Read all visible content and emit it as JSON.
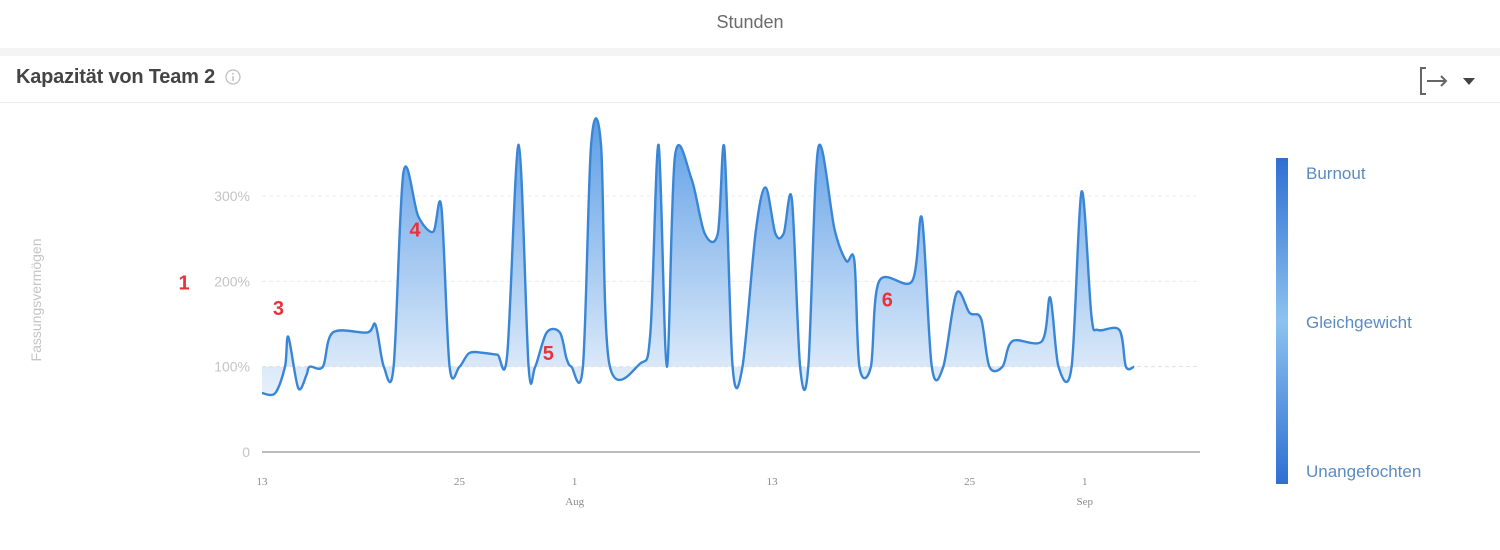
{
  "top_tab": {
    "label": "Stunden"
  },
  "panel": {
    "title": "Kapazität von Team 2"
  },
  "icons": {
    "info": "info-circle-icon",
    "export": "export-icon",
    "dropdown": "caret-down-icon"
  },
  "colors": {
    "line": "#3a86d6",
    "fill_top": "#5d9ee6",
    "fill_bottom": "#e8f1fb",
    "legend_dark": "#2f6fd2",
    "legend_light": "#8cc3ef",
    "annotation": "#e8323c"
  },
  "chart_data": {
    "type": "area",
    "ylabel": "Fassungsvermögen",
    "ylim": [
      0,
      300
    ],
    "y_ticks": [
      {
        "value": 0,
        "label": "0"
      },
      {
        "value": 100,
        "label": "100%"
      },
      {
        "value": 200,
        "label": "200%"
      },
      {
        "value": 300,
        "label": "300%"
      }
    ],
    "baseline": 100,
    "x_range": [
      "2018-07-13",
      "2018-09-08"
    ],
    "x_ticks": [
      {
        "date": "2018-07-13",
        "label": "13",
        "month": ""
      },
      {
        "date": "2018-07-25",
        "label": "25",
        "month": ""
      },
      {
        "date": "2018-08-01",
        "label": "1",
        "month": "Aug"
      },
      {
        "date": "2018-08-13",
        "label": "13",
        "month": ""
      },
      {
        "date": "2018-08-25",
        "label": "25",
        "month": ""
      },
      {
        "date": "2018-09-01",
        "label": "1",
        "month": "Sep"
      }
    ],
    "series": [
      {
        "values": [
          [
            "2018-07-13",
            69
          ],
          [
            "2018-07-13.8",
            69
          ],
          [
            "2018-07-14.4",
            100
          ],
          [
            "2018-07-14.6",
            135
          ],
          [
            "2018-07-15.2",
            75
          ],
          [
            "2018-07-15.7",
            90
          ],
          [
            "2018-07-15.9",
            100
          ],
          [
            "2018-07-16.7",
            100
          ],
          [
            "2018-07-17.3",
            140
          ],
          [
            "2018-07-19.4",
            140
          ],
          [
            "2018-07-19.9",
            149
          ],
          [
            "2018-07-20.4",
            100
          ],
          [
            "2018-07-21.0",
            100
          ],
          [
            "2018-07-21.6",
            328
          ],
          [
            "2018-07-22.5",
            276
          ],
          [
            "2018-07-23.4",
            258
          ],
          [
            "2018-07-23.9",
            287
          ],
          [
            "2018-07-24.4",
            100
          ],
          [
            "2018-07-25.0",
            100
          ],
          [
            "2018-07-25.6",
            116
          ],
          [
            "2018-07-26.5",
            116
          ],
          [
            "2018-07-27.3",
            114
          ],
          [
            "2018-07-27.9",
            114
          ],
          [
            "2018-07-28.6",
            360
          ],
          [
            "2018-07-29.2",
            100
          ],
          [
            "2018-07-29.6",
            100
          ],
          [
            "2018-07-30.3",
            140
          ],
          [
            "2018-07-31.1",
            140
          ],
          [
            "2018-07-31.5",
            110
          ],
          [
            "2018-07-31.8",
            100
          ],
          [
            "2018-08-01.5",
            100
          ],
          [
            "2018-08-02.0",
            360
          ],
          [
            "2018-08-02.6",
            360
          ],
          [
            "2018-08-03.1",
            104
          ],
          [
            "2018-08-05.0",
            104
          ],
          [
            "2018-08-05.6",
            140
          ],
          [
            "2018-08-06.1",
            360
          ],
          [
            "2018-08-06.6",
            100
          ],
          [
            "2018-08-07.1",
            347
          ],
          [
            "2018-08-08.1",
            320
          ],
          [
            "2018-08-08.9",
            256
          ],
          [
            "2018-08-09.7",
            256
          ],
          [
            "2018-08-10.1",
            356
          ],
          [
            "2018-08-10.6",
            100
          ],
          [
            "2018-08-11.2",
            100
          ],
          [
            "2018-08-12.0",
            258
          ],
          [
            "2018-08-12.6",
            310
          ],
          [
            "2018-08-13.2",
            256
          ],
          [
            "2018-08-13.7",
            256
          ],
          [
            "2018-08-14.2",
            296
          ],
          [
            "2018-08-14.7",
            100
          ],
          [
            "2018-08-15.2",
            100
          ],
          [
            "2018-08-15.8",
            356
          ],
          [
            "2018-08-16.8",
            260
          ],
          [
            "2018-08-17.5",
            224
          ],
          [
            "2018-08-18.0",
            224
          ],
          [
            "2018-08-18.3",
            100
          ],
          [
            "2018-08-19.0",
            100
          ],
          [
            "2018-08-19.5",
            200
          ],
          [
            "2018-08-21.5",
            200
          ],
          [
            "2018-08-22.1",
            274
          ],
          [
            "2018-08-22.7",
            100
          ],
          [
            "2018-08-23.4",
            100
          ],
          [
            "2018-08-24.2",
            186
          ],
          [
            "2018-08-25.0",
            163
          ],
          [
            "2018-08-25.7",
            156
          ],
          [
            "2018-08-26.2",
            100
          ],
          [
            "2018-08-27.0",
            100
          ],
          [
            "2018-08-27.6",
            130
          ],
          [
            "2018-08-29.4",
            130
          ],
          [
            "2018-08-29.9",
            181
          ],
          [
            "2018-08-30.4",
            100
          ],
          [
            "2018-08-31.2",
            100
          ],
          [
            "2018-08-31.8",
            305
          ],
          [
            "2018-09-01.4",
            160
          ],
          [
            "2018-09-01.8",
            143
          ],
          [
            "2018-09-03.1",
            143
          ],
          [
            "2018-09-03.5",
            100
          ],
          [
            "2018-09-04.0",
            100
          ]
        ]
      }
    ],
    "legend": {
      "top": "Burnout",
      "middle": "Gleichgewicht",
      "bottom": "Unangefochten"
    },
    "annotations": [
      {
        "label": "1",
        "y": 200
      },
      {
        "label": "3",
        "date": "2018-07-14.0",
        "y": 170
      },
      {
        "label": "4",
        "date": "2018-07-22.3",
        "y": 262
      },
      {
        "label": "5",
        "date": "2018-07-30.4",
        "y": 117
      },
      {
        "label": "6",
        "date": "2018-08-20.0",
        "y": 180
      }
    ]
  }
}
